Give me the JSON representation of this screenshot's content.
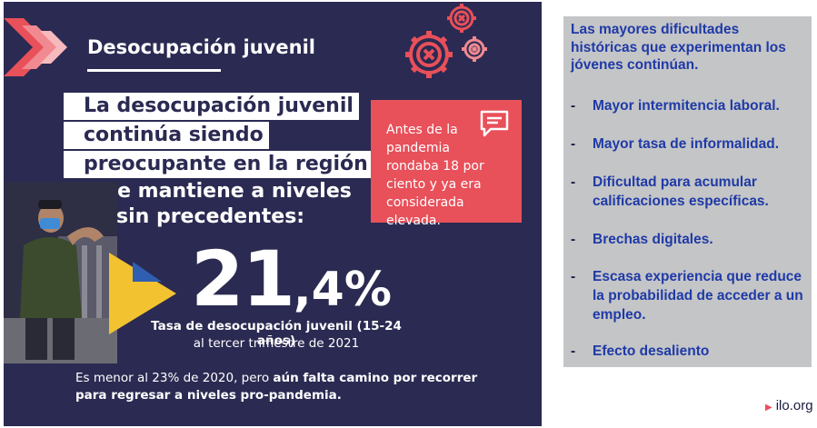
{
  "infographic": {
    "title": "Desocupación juvenil",
    "headline_lines": [
      "La desocupación juvenil",
      "continúa siendo",
      "preocupante en la región",
      "y se mantiene a niveles",
      "sin precedentes:"
    ],
    "callout_text": "Antes de la pandemia rondaba 18 por ciento y ya era considerada elevada.",
    "rate_value_int": "21",
    "rate_value_dec": ",4%",
    "rate_label": "Tasa de desocupación juvenil (15-24 años)",
    "rate_period": "al tercer trimestre de 2021",
    "footer_plain": "Es menor al 23% de 2020, pero ",
    "footer_bold": "aún falta camino por recorrer para regresar a niveles pro-pandemia.",
    "colors": {
      "background": "#2b2a52",
      "accent_red": "#e8505a",
      "accent_yellow": "#f2c230",
      "accent_blue": "#2f5fb0"
    }
  },
  "panel": {
    "heading": "Las mayores dificultades históricas que experimentan los jóvenes continúan.",
    "bullets": [
      "Mayor intermitencia laboral.",
      "Mayor tasa de informalidad.",
      "Dificultad para acumular calificaciones específicas.",
      "Brechas digitales.",
      "Escasa experiencia que reduce la probabilidad de acceder a un empleo.",
      "Efecto desaliento"
    ],
    "bullet_marker": "-",
    "colors": {
      "background": "#c4c5c7",
      "text": "#1f3aa6"
    }
  },
  "brand": {
    "text": "ilo.org",
    "icon": "play-arrow-icon"
  }
}
